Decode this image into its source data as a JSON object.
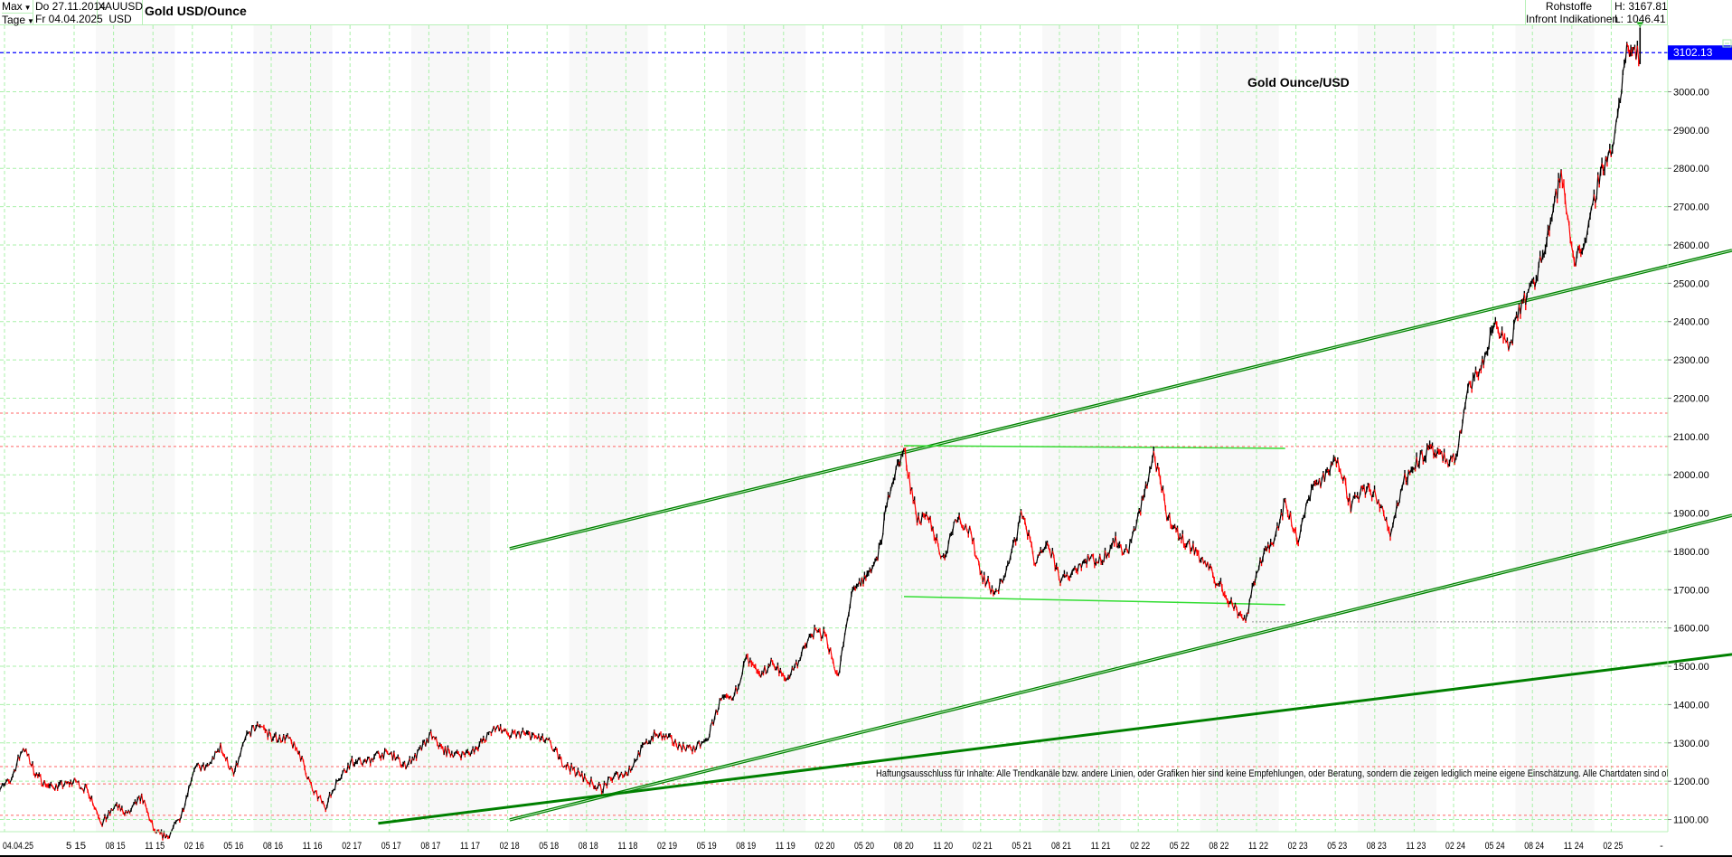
{
  "header": {
    "range_select": "Max",
    "interval_select": "Tage",
    "date_from": "Do 27.11.2014",
    "date_to": "Fr 04.04.2025",
    "symbol": "XAUUSD",
    "currency": "USD",
    "title": "Gold USD/Ounce",
    "category": "Rohstoffe",
    "source": "Infront Indikationen",
    "high": "H: 3167.81",
    "low": "L: 1046.41"
  },
  "chart_data": {
    "type": "line",
    "title": "Gold Ounce/USD",
    "xlabel": "",
    "ylabel": "",
    "ylim": [
      1040,
      3180
    ],
    "y_ticks": [
      "1100.00",
      "1200.00",
      "1300.00",
      "1400.00",
      "1500.00",
      "1600.00",
      "1700.00",
      "1800.00",
      "1900.00",
      "2000.00",
      "2100.00",
      "2200.00",
      "2300.00",
      "2400.00",
      "2500.00",
      "2600.00",
      "2700.00",
      "2800.00",
      "2900.00",
      "3000.00"
    ],
    "x_first_label": "04.04.25",
    "x_ticks": [
      "5 15",
      "08 15",
      "11 15",
      "02 16",
      "05 16",
      "08 16",
      "11 16",
      "02 17",
      "05 17",
      "08 17",
      "11 17",
      "02 18",
      "05 18",
      "08 18",
      "11 18",
      "02 19",
      "05 19",
      "08 19",
      "11 19",
      "02 20",
      "05 20",
      "08 20",
      "11 20",
      "02 21",
      "05 21",
      "08 21",
      "11 21",
      "02 22",
      "05 22",
      "08 22",
      "11 22",
      "02 23",
      "05 23",
      "08 23",
      "11 23",
      "02 24",
      "05 24",
      "08 24",
      "11 24",
      "02 25"
    ],
    "x_last_label": "-",
    "grid": true,
    "last_price": "3102.13",
    "last_price_color": "#0000ff",
    "up_color": "#000000",
    "down_color": "#ff0000",
    "series": [
      {
        "values": [
          [
            "2014-11",
            1175
          ],
          [
            "2014-12",
            1200
          ],
          [
            "2015-01",
            1290
          ],
          [
            "2015-02",
            1215
          ],
          [
            "2015-03",
            1185
          ],
          [
            "2015-04",
            1190
          ],
          [
            "2015-05",
            1200
          ],
          [
            "2015-06",
            1170
          ],
          [
            "2015-07",
            1090
          ],
          [
            "2015-08",
            1135
          ],
          [
            "2015-09",
            1115
          ],
          [
            "2015-10",
            1160
          ],
          [
            "2015-11",
            1065
          ],
          [
            "2015-12",
            1055
          ],
          [
            "2016-01",
            1110
          ],
          [
            "2016-02",
            1235
          ],
          [
            "2016-03",
            1235
          ],
          [
            "2016-04",
            1290
          ],
          [
            "2016-05",
            1215
          ],
          [
            "2016-06",
            1320
          ],
          [
            "2016-07",
            1350
          ],
          [
            "2016-08",
            1310
          ],
          [
            "2016-09",
            1315
          ],
          [
            "2016-10",
            1275
          ],
          [
            "2016-11",
            1175
          ],
          [
            "2016-12",
            1135
          ],
          [
            "2017-01",
            1210
          ],
          [
            "2017-02",
            1250
          ],
          [
            "2017-03",
            1250
          ],
          [
            "2017-04",
            1270
          ],
          [
            "2017-05",
            1270
          ],
          [
            "2017-06",
            1240
          ],
          [
            "2017-07",
            1270
          ],
          [
            "2017-08",
            1320
          ],
          [
            "2017-09",
            1280
          ],
          [
            "2017-10",
            1270
          ],
          [
            "2017-11",
            1275
          ],
          [
            "2017-12",
            1305
          ],
          [
            "2018-01",
            1345
          ],
          [
            "2018-02",
            1318
          ],
          [
            "2018-03",
            1325
          ],
          [
            "2018-04",
            1315
          ],
          [
            "2018-05",
            1300
          ],
          [
            "2018-06",
            1250
          ],
          [
            "2018-07",
            1225
          ],
          [
            "2018-08",
            1200
          ],
          [
            "2018-09",
            1180
          ],
          [
            "2018-10",
            1215
          ],
          [
            "2018-11",
            1222
          ],
          [
            "2018-12",
            1282
          ],
          [
            "2019-01",
            1321
          ],
          [
            "2019-02",
            1313
          ],
          [
            "2019-03",
            1292
          ],
          [
            "2019-04",
            1284
          ],
          [
            "2019-05",
            1305
          ],
          [
            "2019-06",
            1409
          ],
          [
            "2019-07",
            1413
          ],
          [
            "2019-08",
            1520
          ],
          [
            "2019-09",
            1472
          ],
          [
            "2019-10",
            1512
          ],
          [
            "2019-11",
            1463
          ],
          [
            "2019-12",
            1517
          ],
          [
            "2020-01",
            1587
          ],
          [
            "2020-02",
            1585
          ],
          [
            "2020-03",
            1470
          ],
          [
            "2020-04",
            1686
          ],
          [
            "2020-05",
            1730
          ],
          [
            "2020-06",
            1780
          ],
          [
            "2020-07",
            1975
          ],
          [
            "2020-08",
            2065
          ],
          [
            "2020-09",
            1887
          ],
          [
            "2020-10",
            1879
          ],
          [
            "2020-11",
            1776
          ],
          [
            "2020-12",
            1895
          ],
          [
            "2021-01",
            1850
          ],
          [
            "2021-02",
            1734
          ],
          [
            "2021-03",
            1685
          ],
          [
            "2021-04",
            1769
          ],
          [
            "2021-05",
            1906
          ],
          [
            "2021-06",
            1770
          ],
          [
            "2021-07",
            1814
          ],
          [
            "2021-08",
            1720
          ],
          [
            "2021-09",
            1757
          ],
          [
            "2021-10",
            1783
          ],
          [
            "2021-11",
            1775
          ],
          [
            "2021-12",
            1829
          ],
          [
            "2022-01",
            1797
          ],
          [
            "2022-02",
            1909
          ],
          [
            "2022-03",
            2055
          ],
          [
            "2022-04",
            1897
          ],
          [
            "2022-05",
            1837
          ],
          [
            "2022-06",
            1807
          ],
          [
            "2022-07",
            1766
          ],
          [
            "2022-08",
            1711
          ],
          [
            "2022-09",
            1661
          ],
          [
            "2022-10",
            1620
          ],
          [
            "2022-11",
            1769
          ],
          [
            "2022-12",
            1824
          ],
          [
            "2023-01",
            1928
          ],
          [
            "2023-02",
            1827
          ],
          [
            "2023-03",
            1969
          ],
          [
            "2023-04",
            1990
          ],
          [
            "2023-05",
            2050
          ],
          [
            "2023-06",
            1919
          ],
          [
            "2023-07",
            1965
          ],
          [
            "2023-08",
            1940
          ],
          [
            "2023-09",
            1849
          ],
          [
            "2023-10",
            1983
          ],
          [
            "2023-11",
            2036
          ],
          [
            "2023-12",
            2063
          ],
          [
            "2024-01",
            2040
          ],
          [
            "2024-02",
            2044
          ],
          [
            "2024-03",
            2230
          ],
          [
            "2024-04",
            2286
          ],
          [
            "2024-05",
            2400
          ],
          [
            "2024-06",
            2326
          ],
          [
            "2024-07",
            2447
          ],
          [
            "2024-08",
            2503
          ],
          [
            "2024-09",
            2634
          ],
          [
            "2024-10",
            2785
          ],
          [
            "2024-11",
            2560
          ],
          [
            "2024-12",
            2625
          ],
          [
            "2025-01",
            2798
          ],
          [
            "2025-02",
            2858
          ],
          [
            "2025-03",
            3124
          ],
          [
            "2025-04",
            3102.13
          ]
        ]
      }
    ],
    "trendlines": [
      {
        "from": [
          "2018-02",
          1807
        ],
        "to": [
          "2025-11",
          2586
        ],
        "color": "#008000",
        "style": "double"
      },
      {
        "from": [
          "2018-02",
          1099
        ],
        "to": [
          "2025-11",
          1894
        ],
        "color": "#008000",
        "style": "double"
      },
      {
        "from": [
          "2017-04",
          1090
        ],
        "to": [
          "2025-11",
          1531
        ],
        "color": "#008000",
        "style": "solid"
      },
      {
        "from": [
          "2020-08",
          2076
        ],
        "to": [
          "2023-01",
          2069
        ],
        "color": "#33dd33",
        "style": "thin"
      },
      {
        "from": [
          "2020-08",
          1682
        ],
        "to": [
          "2023-01",
          1661
        ],
        "color": "#33dd33",
        "style": "thin"
      }
    ],
    "horizontal_levels": [
      2161,
      2074,
      1238,
      1193,
      1111
    ],
    "horizontal_level_color": "#ff6666",
    "support_level": 1616,
    "annotation": "Haftungsausschluss für Inhalte: Alle Trendkanäle bzw. andere Linien, oder Grafiken hier sind keine Empfehlungen, oder Beratung, sondern die zeigen lediglich meine eigene Einschätzung. Alle Chartdaten sind ohne G"
  }
}
